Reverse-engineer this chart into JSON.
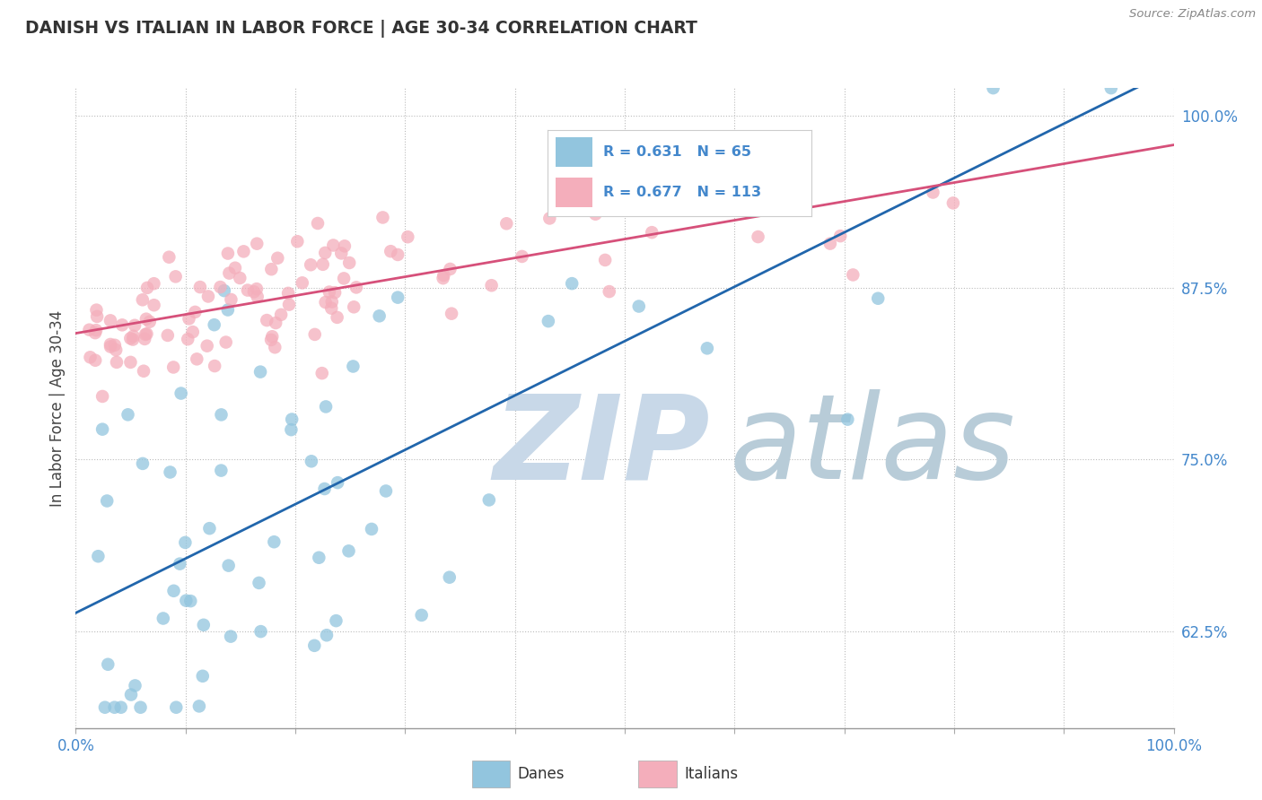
{
  "title": "DANISH VS ITALIAN IN LABOR FORCE | AGE 30-34 CORRELATION CHART",
  "source_text": "Source: ZipAtlas.com",
  "ylabel": "In Labor Force | Age 30-34",
  "xlim": [
    0.0,
    1.0
  ],
  "ylim": [
    0.555,
    1.02
  ],
  "ytick_positions": [
    0.625,
    0.75,
    0.875,
    1.0
  ],
  "ytick_labels": [
    "62.5%",
    "75.0%",
    "87.5%",
    "100.0%"
  ],
  "danes_color": "#92C5DE",
  "italians_color": "#F4AEBB",
  "danes_line_color": "#2166AC",
  "italians_line_color": "#D6507A",
  "legend_danes_R": "0.631",
  "legend_danes_N": "65",
  "legend_italians_R": "0.677",
  "legend_italians_N": "113",
  "background_color": "#ffffff",
  "grid_color": "#bbbbbb",
  "title_color": "#333333",
  "axis_label_color": "#444444",
  "tick_label_color": "#4488cc",
  "watermark_zip": "ZIP",
  "watermark_atlas": "atlas",
  "watermark_color_zip": "#c8d8e8",
  "watermark_color_atlas": "#b8ccd8"
}
